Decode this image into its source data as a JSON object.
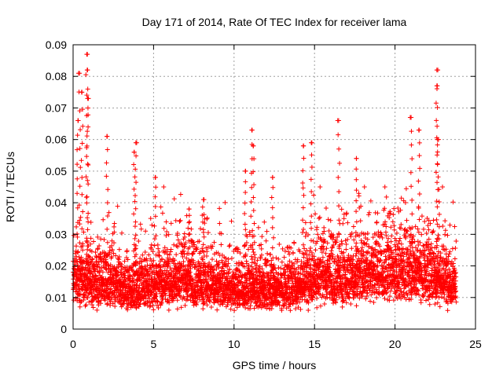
{
  "chart_data": {
    "type": "scatter",
    "title": "Day 171 of 2014, Rate Of TEC Index for receiver lama",
    "xlabel": "GPS time / hours",
    "ylabel": "ROTI / TECUs",
    "xlim": [
      0,
      25
    ],
    "ylim": [
      0,
      0.09
    ],
    "x_ticks": [
      0,
      5,
      10,
      15,
      20,
      25
    ],
    "x_tick_labels": [
      "0",
      "5",
      "10",
      "15",
      "20",
      "25"
    ],
    "y_ticks": [
      0,
      0.01,
      0.02,
      0.03,
      0.04,
      0.05,
      0.06,
      0.07,
      0.08,
      0.09
    ],
    "y_tick_labels": [
      "0",
      "0.01",
      "0.02",
      "0.03",
      "0.04",
      "0.05",
      "0.06",
      "0.07",
      "0.08",
      "0.09"
    ],
    "grid": true,
    "marker": "plus",
    "series": [
      {
        "name": "ROTI",
        "color": "#ff0000",
        "x_range": [
          0,
          23.8
        ],
        "sampling_interval_hours": 0.01,
        "typical_range": [
          0.005,
          0.03
        ],
        "median_profile": [
          [
            0,
            0.015
          ],
          [
            1,
            0.016
          ],
          [
            2,
            0.015
          ],
          [
            3,
            0.013
          ],
          [
            4,
            0.013
          ],
          [
            5,
            0.014
          ],
          [
            6,
            0.016
          ],
          [
            7,
            0.016
          ],
          [
            8,
            0.015
          ],
          [
            9,
            0.014
          ],
          [
            10,
            0.013
          ],
          [
            11,
            0.013
          ],
          [
            12,
            0.013
          ],
          [
            13,
            0.013
          ],
          [
            14,
            0.014
          ],
          [
            15,
            0.017
          ],
          [
            16,
            0.017
          ],
          [
            17,
            0.016
          ],
          [
            18,
            0.018
          ],
          [
            19,
            0.019
          ],
          [
            20,
            0.018
          ],
          [
            21,
            0.019
          ],
          [
            22,
            0.018
          ],
          [
            23,
            0.016
          ],
          [
            23.8,
            0.015
          ]
        ],
        "peaks": [
          [
            0.3,
            0.066
          ],
          [
            0.4,
            0.081
          ],
          [
            0.55,
            0.075
          ],
          [
            0.85,
            0.087
          ],
          [
            0.9,
            0.082
          ],
          [
            0.9,
            0.073
          ],
          [
            2.1,
            0.061
          ],
          [
            3.9,
            0.059
          ],
          [
            3.8,
            0.056
          ],
          [
            5.1,
            0.048
          ],
          [
            7.2,
            0.038
          ],
          [
            8.1,
            0.041
          ],
          [
            11.1,
            0.063
          ],
          [
            11.2,
            0.058
          ],
          [
            10.7,
            0.05
          ],
          [
            12.4,
            0.048
          ],
          [
            14.3,
            0.058
          ],
          [
            14.8,
            0.059
          ],
          [
            16.5,
            0.066
          ],
          [
            17.6,
            0.054
          ],
          [
            21.0,
            0.067
          ],
          [
            21.5,
            0.063
          ],
          [
            22.6,
            0.082
          ],
          [
            22.6,
            0.077
          ],
          [
            22.7,
            0.06
          ]
        ]
      }
    ]
  }
}
